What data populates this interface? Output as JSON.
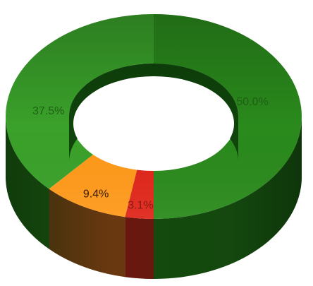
{
  "chart_data": {
    "type": "pie",
    "variant": "3d-donut",
    "title": "",
    "series": [
      {
        "label": "50.0%",
        "value": 50.0,
        "color": "#2a8a1c",
        "side_color": "#165010",
        "label_color": "#1f5f14"
      },
      {
        "label": "3.1%",
        "value": 3.1,
        "color": "#e0261a",
        "side_color": "#7a1410",
        "label_color": "#8a1a12"
      },
      {
        "label": "9.4%",
        "value": 9.4,
        "color": "#ff9a1a",
        "side_color": "#7a3a12",
        "label_color": "#3a1a00"
      },
      {
        "label": "37.5%",
        "value": 37.5,
        "color": "#3aa12a",
        "side_color": "#1b5a12",
        "label_color": "#1f5f14"
      }
    ],
    "legend": "none"
  }
}
